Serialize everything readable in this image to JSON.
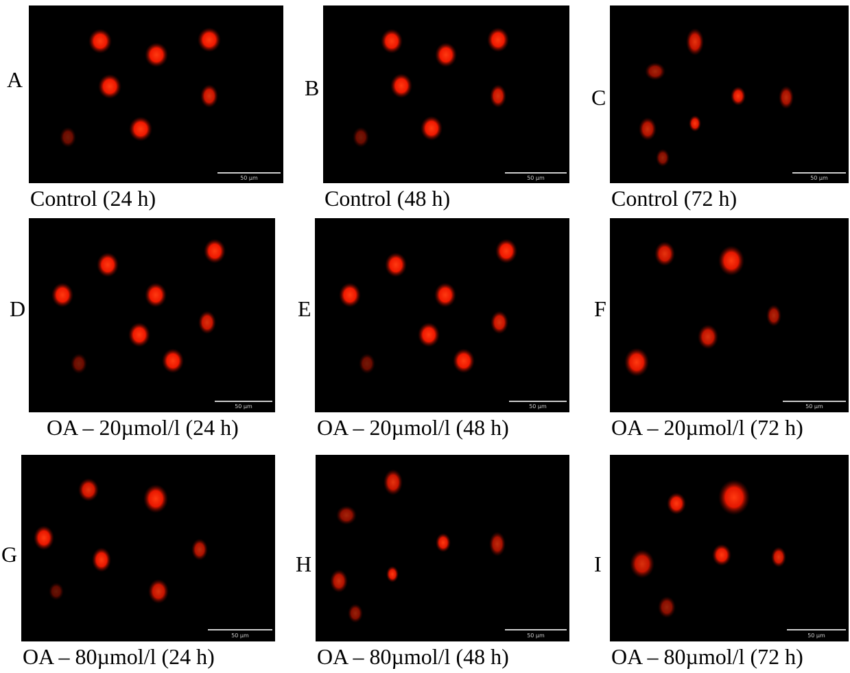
{
  "colors": {
    "background": "#ffffff",
    "panel": "#000000",
    "cell": "#ff2a0a",
    "scalebar": "#cfcfcf"
  },
  "scale_bar_label": "50 µm",
  "panels": [
    {
      "letter": "A",
      "caption": "Control (24 h)"
    },
    {
      "letter": "B",
      "caption": "Control (48 h)"
    },
    {
      "letter": "C",
      "caption": "Control (72 h)"
    },
    {
      "letter": "D",
      "caption": "OA – 20µmol/l (24 h)"
    },
    {
      "letter": "E",
      "caption": "OA – 20µmol/l (48 h)"
    },
    {
      "letter": "F",
      "caption": "OA – 20µmol/l (72 h)"
    },
    {
      "letter": "G",
      "caption": "OA – 80µmol/l (24 h)"
    },
    {
      "letter": "H",
      "caption": "OA – 80µmol/l (48 h)"
    },
    {
      "letter": "I",
      "caption": "OA – 80µmol/l (72 h)"
    }
  ]
}
